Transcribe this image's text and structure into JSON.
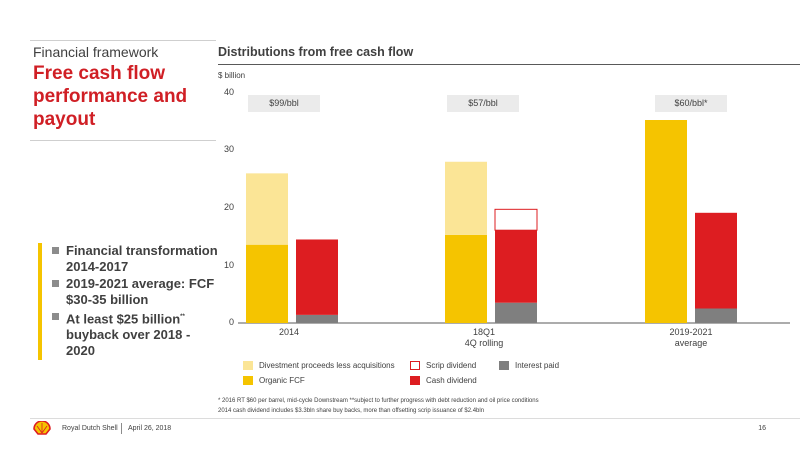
{
  "slide": {
    "section_label": "Financial framework",
    "title": "Free cash flow performance and payout",
    "bullets": [
      {
        "text": "Financial transformation 2014-2017",
        "sup": ""
      },
      {
        "text": "2019-2021 average: FCF $30-35 billion",
        "sup": ""
      },
      {
        "text": "At least $25 billion",
        "sup": "**",
        "text_after": " buyback over 2018 - 2020"
      }
    ],
    "footnotes": [
      "* 2016 RT $60 per barrel, mid-cycle Downstream **subject to further progress with debt reduction and oil price conditions",
      "2014 cash dividend includes $3.3bln share buy backs, more than offsetting scrip issuance of $2.4bln"
    ],
    "footer": {
      "company": "Royal Dutch Shell",
      "date": "April 26, 2018",
      "page": "16"
    }
  },
  "colors": {
    "divestment": "#fbe596",
    "organic_fcf": "#f5c400",
    "cash_dividend": "#dd1d21",
    "scrip_outline": "#dd1d21",
    "interest_paid": "#7f7f7f",
    "title_red": "#d01f25"
  },
  "chart_data": {
    "type": "bar",
    "title": "Distributions from free cash flow",
    "unit_label": "$ billion",
    "ylim": [
      0,
      40
    ],
    "yticks": [
      0,
      10,
      20,
      30,
      40
    ],
    "grid": false,
    "legend_position": "bottom",
    "categories": [
      "2014",
      "18Q1\n4Q rolling",
      "2019-2021\naverage"
    ],
    "price_labels": [
      "$99/bbl",
      "$57/bbl",
      "$60/bbl*"
    ],
    "stacks": [
      {
        "name": "free_cash_flow",
        "series": [
          {
            "name": "Organic FCF",
            "color_key": "organic_fcf",
            "values": [
              13.5,
              15.2,
              35.0
            ]
          },
          {
            "name": "Divestment proceeds less acquisitions",
            "color_key": "divestment",
            "values": [
              12.3,
              12.6,
              0
            ]
          }
        ]
      },
      {
        "name": "distributions",
        "series": [
          {
            "name": "Interest paid",
            "color_key": "interest_paid",
            "values": [
              1.4,
              3.5,
              2.5
            ]
          },
          {
            "name": "Cash dividend",
            "color_key": "cash_dividend",
            "values": [
              13.0,
              12.5,
              16.5
            ]
          },
          {
            "name": "Scrip dividend",
            "color_key": "scrip_outline",
            "outline": true,
            "values": [
              0,
              3.6,
              0
            ]
          }
        ]
      }
    ],
    "legend": [
      {
        "label": "Divestment proceeds less acquisitions",
        "color_key": "divestment"
      },
      {
        "label": "Scrip dividend",
        "color_key": "scrip_outline",
        "outline": true
      },
      {
        "label": "Interest paid",
        "color_key": "interest_paid"
      },
      {
        "label": "Organic FCF",
        "color_key": "organic_fcf"
      },
      {
        "label": "Cash dividend",
        "color_key": "cash_dividend"
      }
    ]
  }
}
